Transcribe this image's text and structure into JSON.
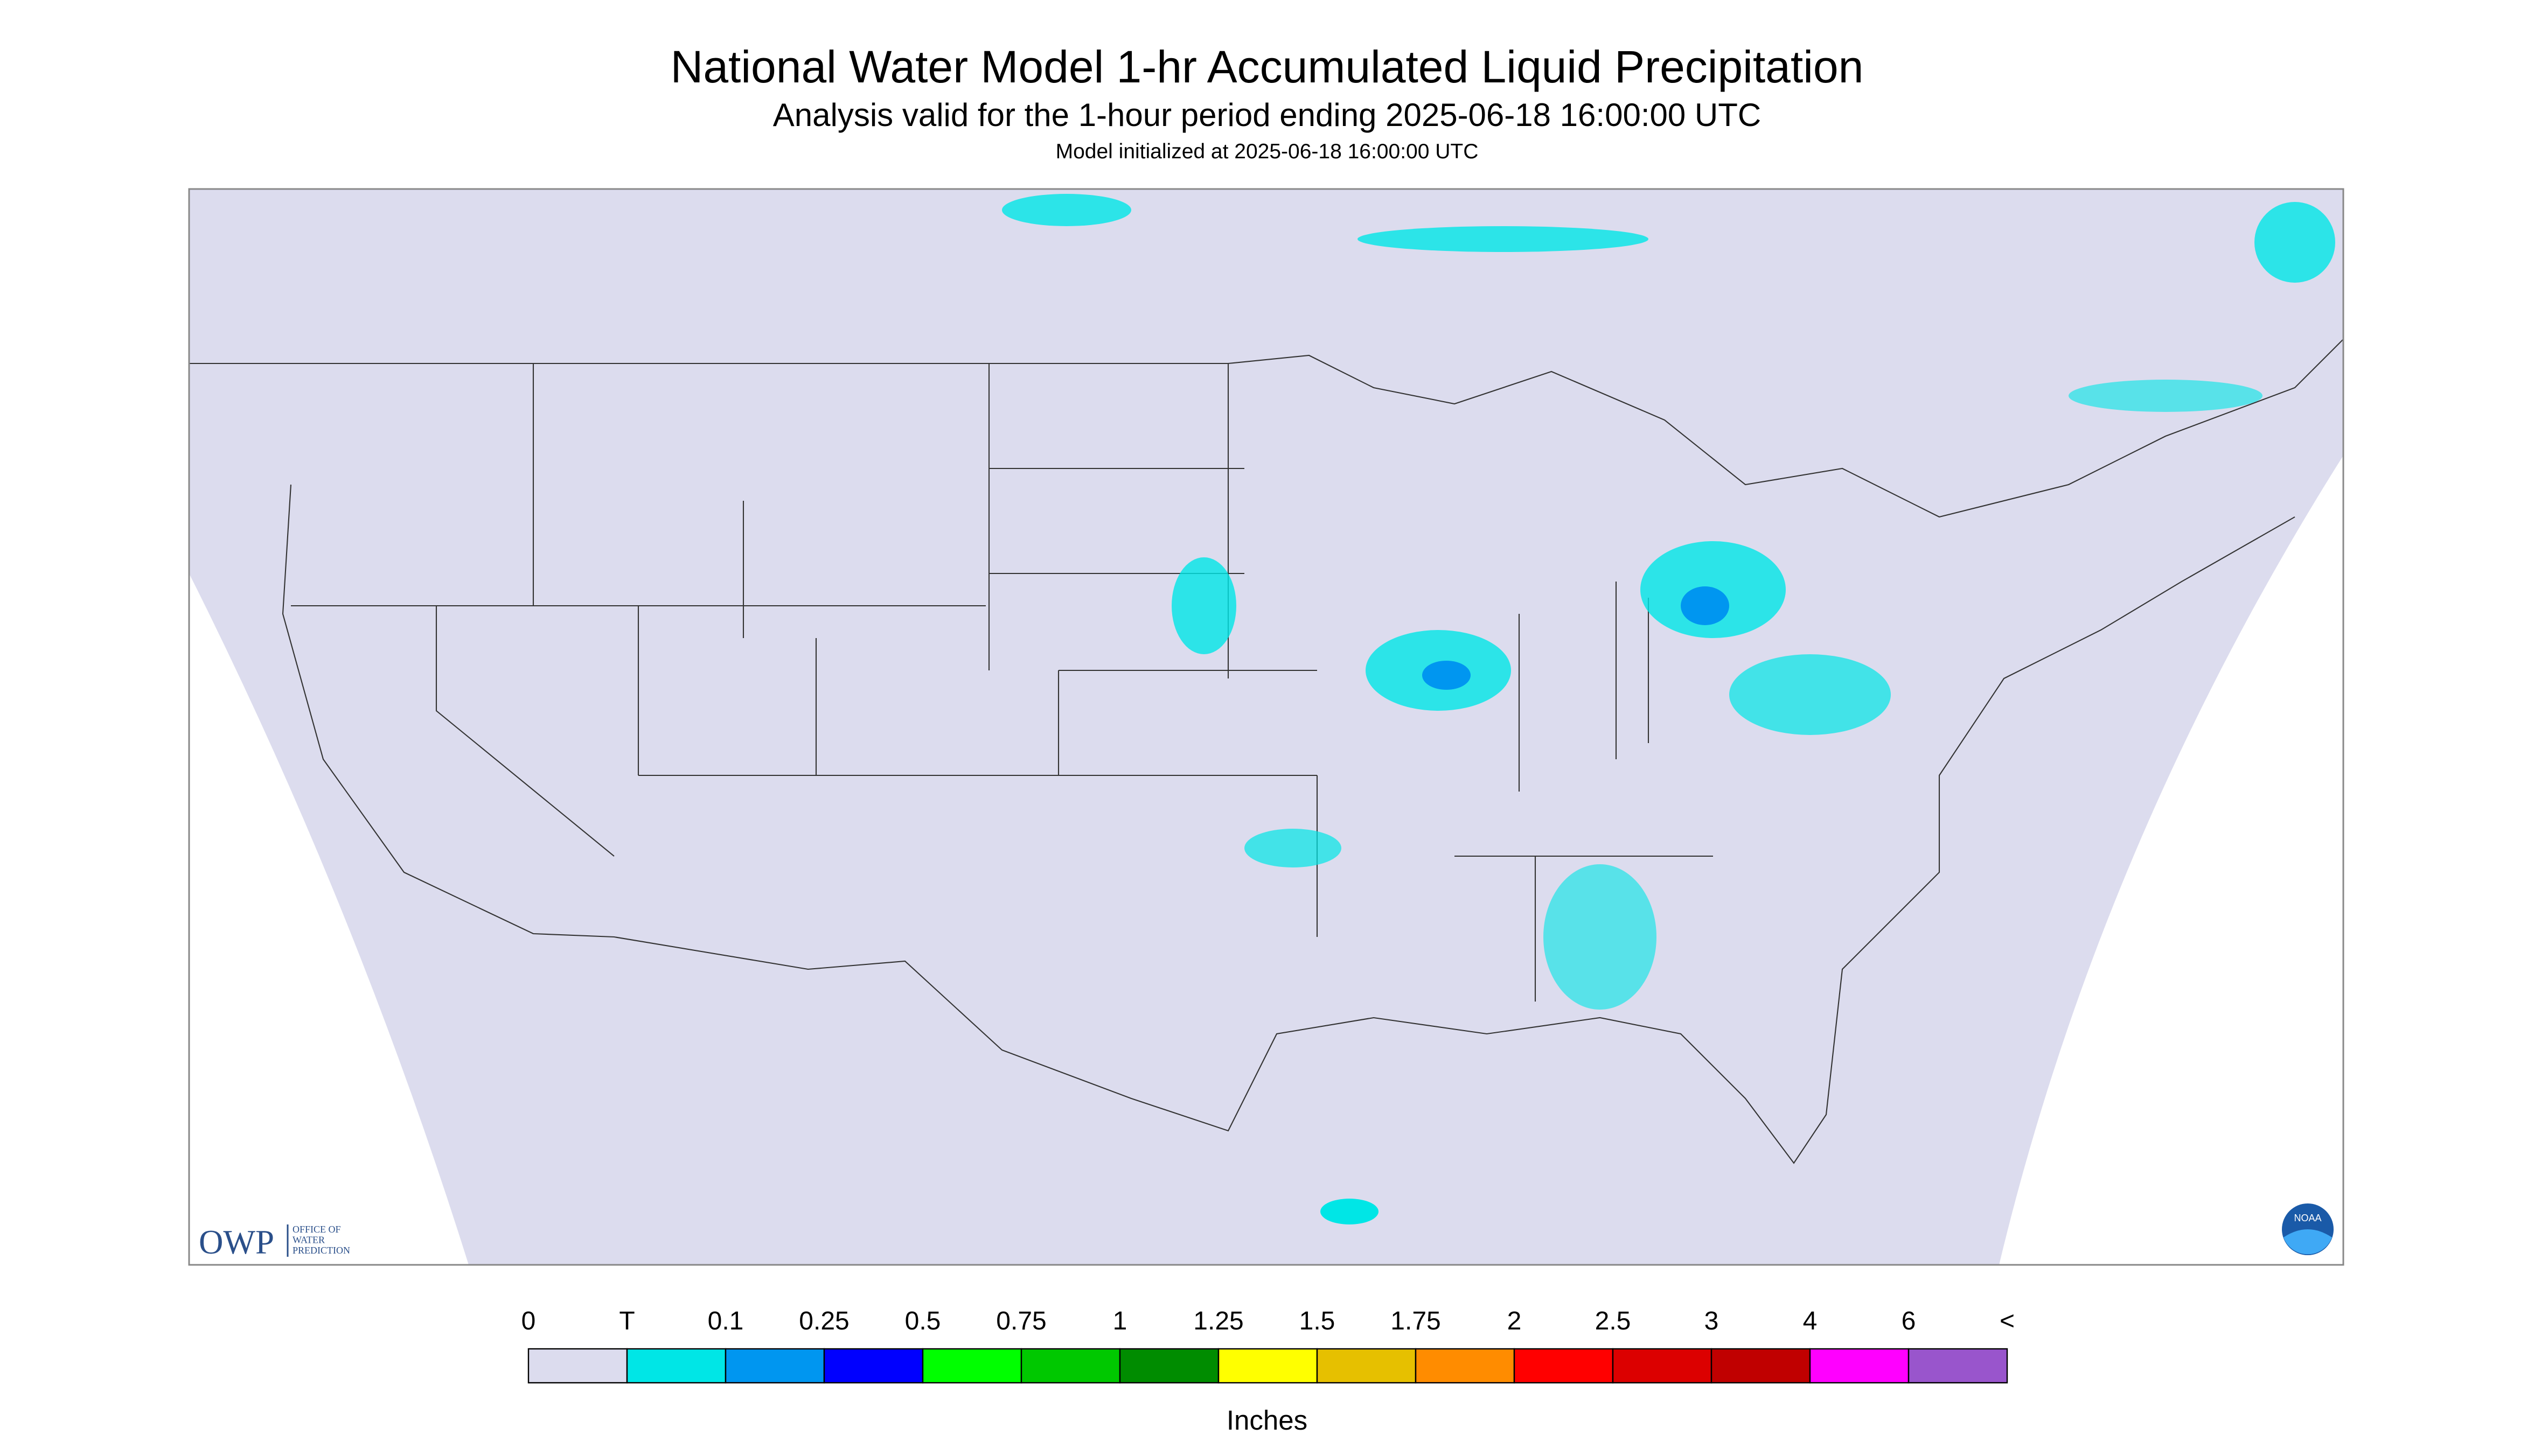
{
  "header": {
    "title": "National Water Model 1-hr Accumulated Liquid Precipitation",
    "subtitle": "Analysis valid for the 1-hour period ending 2025-06-18 16:00:00 UTC",
    "initialized": "Model initialized at 2025-06-18 16:00:00 UTC"
  },
  "legend": {
    "labels": [
      "0",
      "T",
      "0.1",
      "0.25",
      "0.5",
      "0.75",
      "1",
      "1.25",
      "1.5",
      "1.75",
      "2",
      "2.5",
      "3",
      "4",
      "6",
      "<"
    ],
    "colors": [
      "#dcdcee",
      "#00e6e6",
      "#0096f0",
      "#0000ff",
      "#00ff00",
      "#00c800",
      "#008c00",
      "#ffff00",
      "#e6c000",
      "#ff8c00",
      "#ff0000",
      "#dc0000",
      "#c00000",
      "#ff00ff",
      "#9955cc"
    ],
    "unit": "Inches"
  },
  "logo": {
    "owp": "OWP",
    "owp_name": [
      "OFFICE OF",
      "WATER",
      "PREDICTION"
    ],
    "noaa": "NOAA"
  }
}
